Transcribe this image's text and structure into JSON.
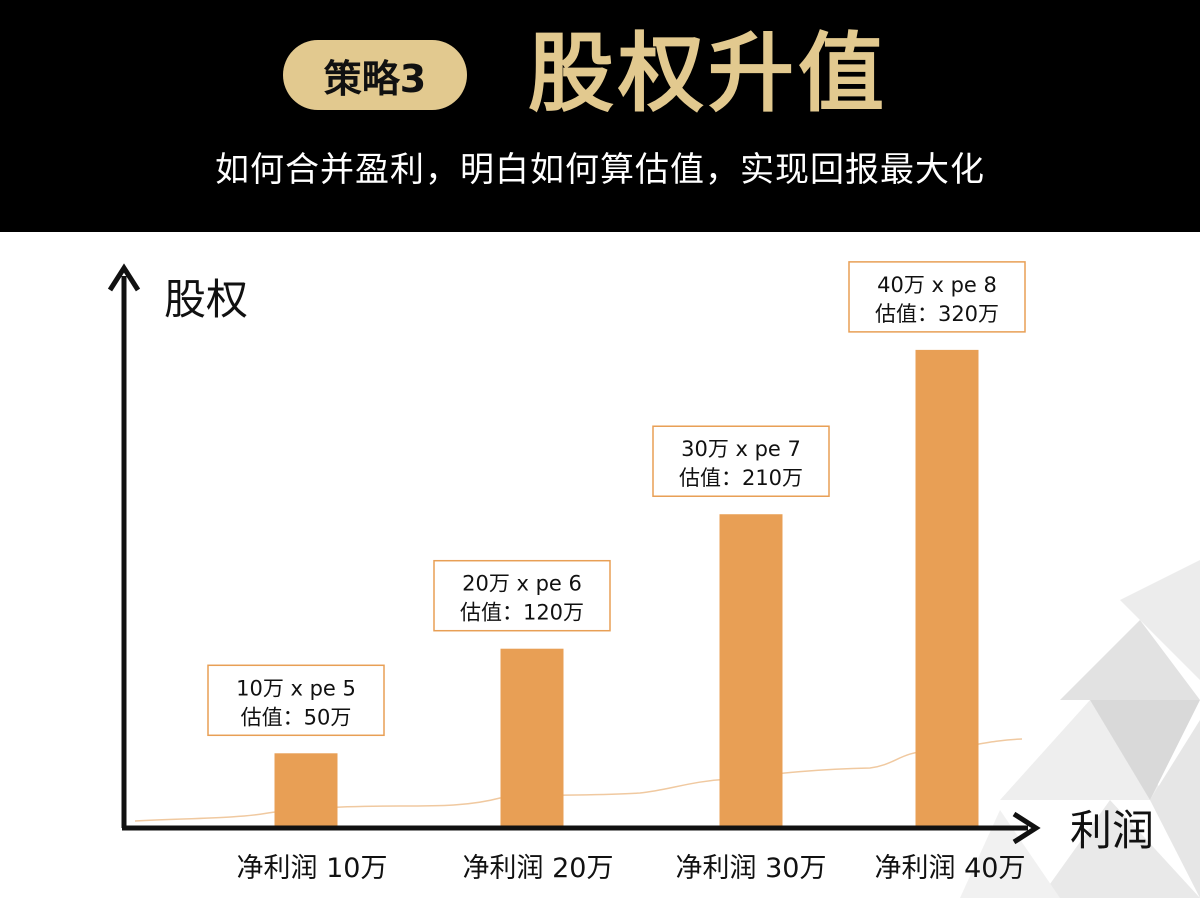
{
  "colors": {
    "header_bg": "#000000",
    "gold": "#E2C98F",
    "bar": "#E89F55",
    "box_border": "#E89F55",
    "axis": "#111111"
  },
  "header": {
    "badge": "策略3",
    "title": "股权升值",
    "subtitle": "如何合并盈利，明白如何算估值，实现回报最大化"
  },
  "chart_data": {
    "type": "bar",
    "title": "",
    "ylabel": "股权",
    "xlabel": "利润",
    "categories": [
      "净利润 10万",
      "净利润 20万",
      "净利润 30万",
      "净利润 40万"
    ],
    "values": [
      50,
      120,
      210,
      320
    ],
    "ylim": [
      0,
      340
    ],
    "grid": false,
    "annotations": [
      {
        "line1": "10万 x pe 5",
        "line2": "估值：50万"
      },
      {
        "line1": "20万 x pe 6",
        "line2": "估值：120万"
      },
      {
        "line1": "30万 x pe 7",
        "line2": "估值：210万"
      },
      {
        "line1": "40万 x pe 8",
        "line2": "估值：320万"
      }
    ]
  }
}
